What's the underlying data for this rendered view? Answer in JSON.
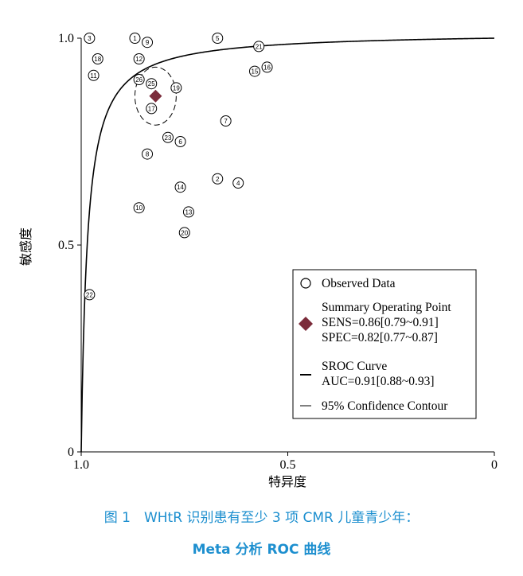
{
  "chart_data": {
    "type": "scatter",
    "title": "",
    "xlabel": "特异度",
    "ylabel": "敏感度",
    "xlim": [
      1.0,
      0.0
    ],
    "ylim": [
      0.0,
      1.0
    ],
    "x_reversed": true,
    "x_ticks": [
      "1.0",
      "0.5",
      "0"
    ],
    "y_ticks": [
      "0",
      "0.5",
      "1.0"
    ],
    "grid": false,
    "legend_position": "bottom-right",
    "series": [
      {
        "name": "Observed Data",
        "kind": "points",
        "points": [
          {
            "id": "1",
            "specificity": 0.87,
            "sensitivity": 1.0
          },
          {
            "id": "2",
            "specificity": 0.67,
            "sensitivity": 0.66
          },
          {
            "id": "3",
            "specificity": 0.98,
            "sensitivity": 1.0
          },
          {
            "id": "4",
            "specificity": 0.62,
            "sensitivity": 0.65
          },
          {
            "id": "5",
            "specificity": 0.67,
            "sensitivity": 1.0
          },
          {
            "id": "6",
            "specificity": 0.76,
            "sensitivity": 0.75
          },
          {
            "id": "7",
            "specificity": 0.65,
            "sensitivity": 0.8
          },
          {
            "id": "8",
            "specificity": 0.84,
            "sensitivity": 0.72
          },
          {
            "id": "9",
            "specificity": 0.84,
            "sensitivity": 0.99
          },
          {
            "id": "10",
            "specificity": 0.86,
            "sensitivity": 0.59
          },
          {
            "id": "11",
            "specificity": 0.97,
            "sensitivity": 0.91
          },
          {
            "id": "12",
            "specificity": 0.86,
            "sensitivity": 0.95
          },
          {
            "id": "13",
            "specificity": 0.74,
            "sensitivity": 0.58
          },
          {
            "id": "14",
            "specificity": 0.76,
            "sensitivity": 0.64
          },
          {
            "id": "15",
            "specificity": 0.58,
            "sensitivity": 0.92
          },
          {
            "id": "16",
            "specificity": 0.55,
            "sensitivity": 0.93
          },
          {
            "id": "17",
            "specificity": 0.83,
            "sensitivity": 0.83
          },
          {
            "id": "18",
            "specificity": 0.96,
            "sensitivity": 0.95
          },
          {
            "id": "19",
            "specificity": 0.77,
            "sensitivity": 0.88
          },
          {
            "id": "20",
            "specificity": 0.75,
            "sensitivity": 0.53
          },
          {
            "id": "21",
            "specificity": 0.57,
            "sensitivity": 0.98
          },
          {
            "id": "22",
            "specificity": 0.98,
            "sensitivity": 0.38
          },
          {
            "id": "23",
            "specificity": 0.79,
            "sensitivity": 0.76
          },
          {
            "id": "25",
            "specificity": 0.83,
            "sensitivity": 0.89
          },
          {
            "id": "26",
            "specificity": 0.86,
            "sensitivity": 0.9
          }
        ]
      },
      {
        "name": "Summary Operating Point",
        "kind": "summary",
        "sensitivity": 0.86,
        "specificity": 0.82,
        "color": "#7b2b3a",
        "lines": [
          "SENS=0.86[0.79~0.91]",
          "SPEC=0.82[0.77~0.87]"
        ]
      },
      {
        "name": "SROC Curve",
        "kind": "curve",
        "lines": [
          "AUC=0.91[0.88~0.93]"
        ]
      },
      {
        "name": "95% Confidence Contour",
        "kind": "contour",
        "center": {
          "specificity": 0.82,
          "sensitivity": 0.86
        },
        "radius_specificity": 0.05,
        "radius_sensitivity": 0.07
      }
    ]
  },
  "caption": {
    "line1": "图 1　WHtR 识别患有至少 3 项 CMR 儿童青少年：",
    "line2": "Meta 分析 ROC 曲线"
  }
}
